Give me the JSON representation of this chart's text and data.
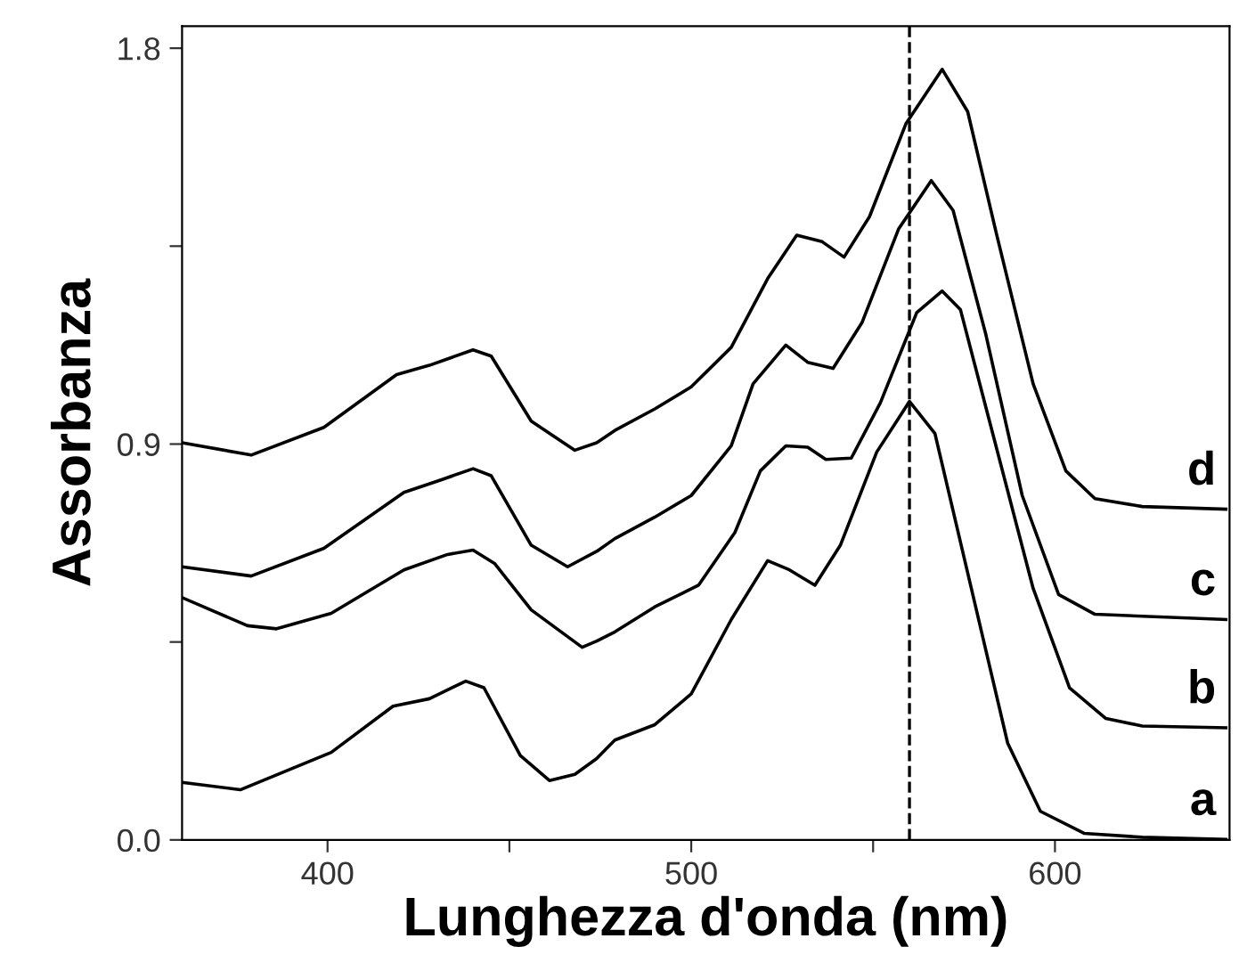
{
  "chart_data": {
    "type": "line",
    "xlabel": "Lunghezza d'onda (nm)",
    "ylabel": "Assorbanza",
    "xlim": [
      360,
      648
    ],
    "ylim": [
      0,
      1.85
    ],
    "xticks": [
      400,
      {
        "value": 450,
        "label": null
      },
      500,
      {
        "value": 550,
        "label": null
      },
      600
    ],
    "yticks": [
      {
        "value": 0,
        "label": "0.0"
      },
      {
        "value": 0.45,
        "label": null
      },
      {
        "value": 0.9,
        "label": "0.9"
      },
      {
        "value": 1.35,
        "label": null
      },
      {
        "value": 1.8,
        "label": "1.8"
      }
    ],
    "grid": false,
    "legend": false,
    "line_style": "solid",
    "marker": "none",
    "ref_lines": [
      {
        "axis": "x",
        "value": 560,
        "label": null,
        "color": "#000000",
        "line_style": "dashed"
      }
    ],
    "series": [
      {
        "name": "a",
        "color": "#000000",
        "x": [
          360,
          376,
          401,
          418,
          428,
          438,
          443,
          453,
          461,
          468,
          474,
          479,
          490,
          500,
          511,
          521,
          527,
          534,
          541,
          551,
          560,
          567,
          577,
          587,
          596,
          608,
          624,
          647
        ],
        "values": [
          0.131,
          0.114,
          0.199,
          0.304,
          0.321,
          0.361,
          0.346,
          0.192,
          0.135,
          0.149,
          0.185,
          0.227,
          0.262,
          0.332,
          0.501,
          0.635,
          0.614,
          0.579,
          0.67,
          0.882,
          0.997,
          0.924,
          0.572,
          0.22,
          0.065,
          0.015,
          0.006,
          0.001
        ]
      },
      {
        "name": "b",
        "color": "#000000",
        "x": [
          360,
          378,
          386,
          401,
          421,
          433,
          440,
          446,
          456,
          470,
          474,
          479,
          490,
          502,
          512,
          519,
          526,
          532,
          537,
          544,
          552,
          562,
          569,
          574,
          582,
          594,
          604,
          614,
          624,
          647
        ],
        "values": [
          0.551,
          0.487,
          0.48,
          0.515,
          0.614,
          0.649,
          0.659,
          0.628,
          0.523,
          0.438,
          0.452,
          0.473,
          0.53,
          0.579,
          0.699,
          0.839,
          0.896,
          0.893,
          0.865,
          0.868,
          0.994,
          1.199,
          1.248,
          1.206,
          0.952,
          0.572,
          0.346,
          0.276,
          0.259,
          0.255
        ]
      },
      {
        "name": "c",
        "color": "#000000",
        "x": [
          360,
          379,
          399,
          421,
          431,
          440,
          445,
          456,
          466,
          474,
          479,
          490,
          500,
          511,
          517,
          526,
          532,
          539,
          547,
          557,
          566,
          572,
          581,
          591,
          601,
          611,
          647
        ],
        "values": [
          0.621,
          0.6,
          0.663,
          0.79,
          0.818,
          0.844,
          0.828,
          0.67,
          0.621,
          0.656,
          0.685,
          0.734,
          0.783,
          0.896,
          1.037,
          1.125,
          1.086,
          1.072,
          1.177,
          1.389,
          1.499,
          1.431,
          1.149,
          0.783,
          0.558,
          0.513,
          0.501
        ]
      },
      {
        "name": "d",
        "color": "#000000",
        "x": [
          360,
          379,
          399,
          419,
          428,
          440,
          445,
          456,
          468,
          474,
          479,
          490,
          500,
          511,
          521,
          529,
          536,
          542,
          549,
          559,
          569,
          576,
          584,
          594,
          603,
          611,
          624,
          647
        ],
        "values": [
          0.903,
          0.875,
          0.938,
          1.058,
          1.079,
          1.114,
          1.1,
          0.952,
          0.886,
          0.903,
          0.931,
          0.98,
          1.03,
          1.12,
          1.276,
          1.375,
          1.36,
          1.325,
          1.417,
          1.628,
          1.752,
          1.656,
          1.375,
          1.037,
          0.839,
          0.776,
          0.758,
          0.752
        ]
      }
    ]
  }
}
